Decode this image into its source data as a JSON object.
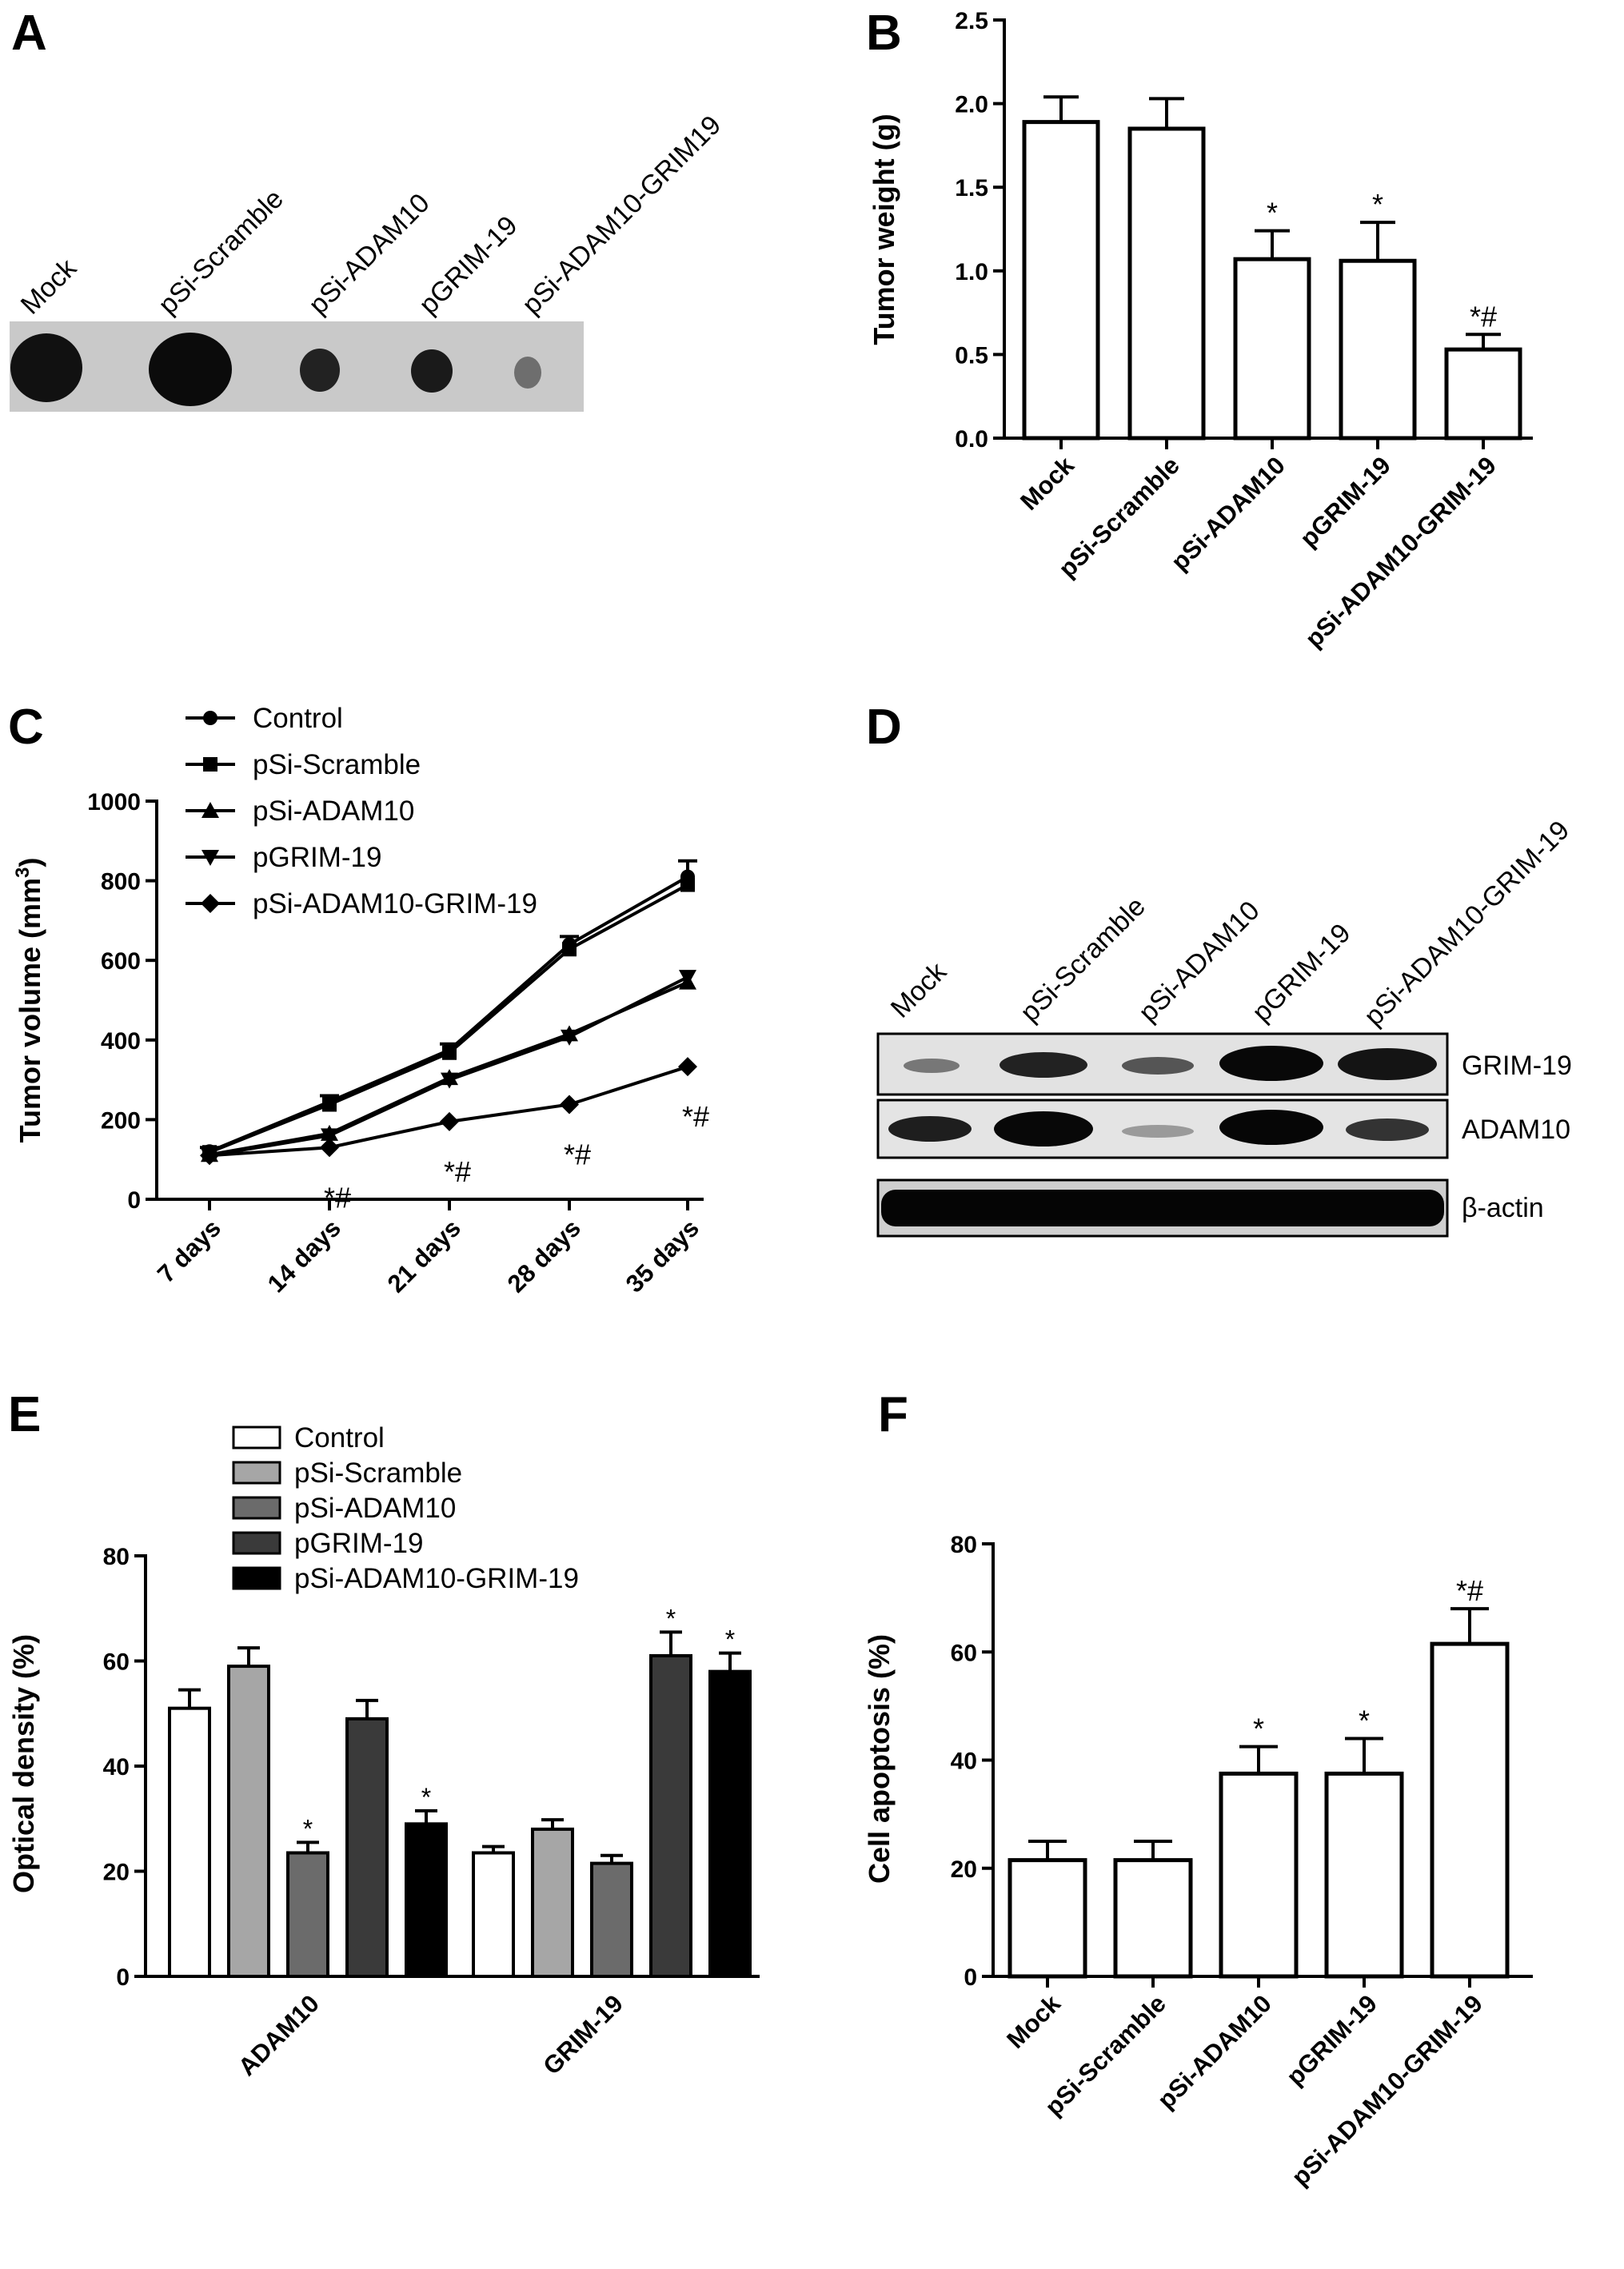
{
  "panel_labels": [
    "A",
    "B",
    "C",
    "D",
    "E",
    "F"
  ],
  "panel_A": {
    "lane_labels": [
      "Mock",
      "pSi-Scramble",
      "pSi-ADAM10",
      "pGRIM-19",
      "pSi-ADAM10-GRIM19"
    ]
  },
  "panel_D": {
    "lane_labels": [
      "Mock",
      "pSi-Scramble",
      "pSi-ADAM10",
      "pGRIM-19",
      "pSi-ADAM10-GRIM-19"
    ],
    "bands": [
      "GRIM-19",
      "ADAM10",
      "β-actin"
    ]
  },
  "chart_data": [
    {
      "panel": "B",
      "type": "bar",
      "categories": [
        "Mock",
        "pSi-Scramble",
        "pSi-ADAM10",
        "pGRIM-19",
        "pSi-ADAM10-GRIM-19"
      ],
      "values": [
        1.89,
        1.85,
        1.07,
        1.06,
        0.53
      ],
      "errors": [
        0.15,
        0.18,
        0.17,
        0.23,
        0.09
      ],
      "annotations": [
        "",
        "",
        "*",
        "*",
        "*#"
      ],
      "ylabel": "Tumor weight (g)",
      "ylim": [
        0,
        2.5
      ],
      "yticks": [
        "0.0",
        "0.5",
        "1.0",
        "1.5",
        "2.0",
        "2.5"
      ]
    },
    {
      "panel": "C",
      "type": "line",
      "x": [
        "7 days",
        "14 days",
        "21 days",
        "28 days",
        "35 days"
      ],
      "series": [
        {
          "name": "Control",
          "marker": "circle",
          "values": [
            120,
            245,
            375,
            640,
            810
          ]
        },
        {
          "name": "pSi-Scramble",
          "marker": "square",
          "values": [
            118,
            238,
            368,
            628,
            790
          ]
        },
        {
          "name": "pSi-ADAM10",
          "marker": "triangle-up",
          "values": [
            112,
            165,
            305,
            415,
            545
          ]
        },
        {
          "name": "pGRIM-19",
          "marker": "triangle-down",
          "values": [
            110,
            160,
            300,
            408,
            558
          ]
        },
        {
          "name": "pSi-ADAM10-GRIM-19",
          "marker": "diamond",
          "values": [
            110,
            130,
            195,
            238,
            333
          ]
        }
      ],
      "errors": [
        10,
        15,
        15,
        20,
        40
      ],
      "annotations": [
        {
          "x": "14 days",
          "text": "*#"
        },
        {
          "x": "21 days",
          "text": "*#"
        },
        {
          "x": "28 days",
          "text": "*#"
        },
        {
          "x": "35 days",
          "text": "*#"
        }
      ],
      "ylabel": "Tumor volume (mm",
      "ylabel_sup": "3",
      "ylabel_end": ")",
      "ylim": [
        0,
        1000
      ],
      "yticks": [
        "0",
        "200",
        "400",
        "600",
        "800",
        "1000"
      ],
      "legend_position": "top"
    },
    {
      "panel": "E",
      "type": "bar",
      "categories": [
        "ADAM10",
        "GRIM-19"
      ],
      "series": [
        {
          "name": "Control",
          "color": "#ffffff",
          "values": [
            51,
            23.5
          ],
          "errors": [
            3.5,
            1.2
          ],
          "annotations": [
            "",
            ""
          ]
        },
        {
          "name": "pSi-Scramble",
          "color": "#a6a6a6",
          "values": [
            59,
            28
          ],
          "errors": [
            3.5,
            1.8
          ],
          "annotations": [
            "",
            ""
          ]
        },
        {
          "name": "pSi-ADAM10",
          "color": "#6b6b6b",
          "values": [
            23.5,
            21.5
          ],
          "errors": [
            2.0,
            1.5
          ],
          "annotations": [
            "*",
            ""
          ]
        },
        {
          "name": "pGRIM-19",
          "color": "#3a3a3a",
          "values": [
            49,
            61
          ],
          "errors": [
            3.5,
            4.5
          ],
          "annotations": [
            "",
            "*"
          ]
        },
        {
          "name": "pSi-ADAM10-GRIM-19",
          "color": "#000000",
          "values": [
            29,
            58
          ],
          "errors": [
            2.5,
            3.5
          ],
          "annotations": [
            "*",
            "*"
          ]
        }
      ],
      "ylabel": "Optical density (%)",
      "ylim": [
        0,
        80
      ],
      "yticks": [
        "0",
        "20",
        "40",
        "60",
        "80"
      ],
      "legend_position": "top-left"
    },
    {
      "panel": "F",
      "type": "bar",
      "categories": [
        "Mock",
        "pSi-Scramble",
        "pSi-ADAM10",
        "pGRIM-19",
        "pSi-ADAM10-GRIM-19"
      ],
      "values": [
        21.5,
        21.5,
        37.5,
        37.5,
        61.5
      ],
      "errors": [
        3.5,
        3.5,
        5,
        6.5,
        6.5
      ],
      "annotations": [
        "",
        "",
        "*",
        "*",
        "*#"
      ],
      "ylabel": "Cell apoptosis (%)",
      "ylim": [
        0,
        80
      ],
      "yticks": [
        "0",
        "20",
        "40",
        "60",
        "80"
      ]
    }
  ]
}
